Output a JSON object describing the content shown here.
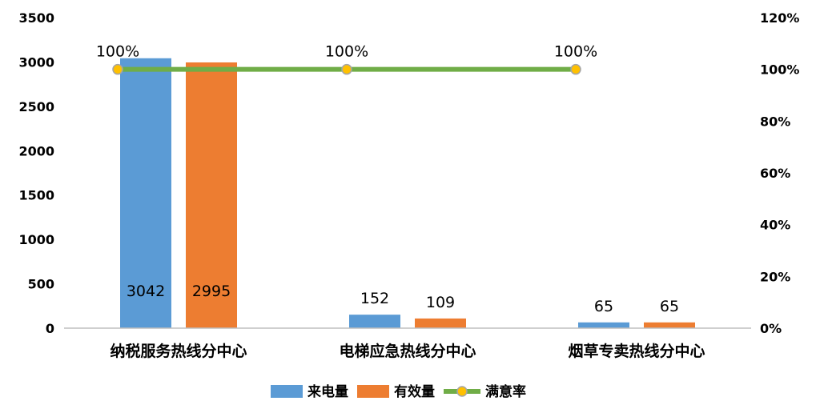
{
  "chart_data": {
    "type": "bar",
    "categories": [
      "纳税服务热线分中心",
      "电梯应急热线分中心",
      "烟草专卖热线分中心"
    ],
    "series": [
      {
        "name": "来电量",
        "type": "bar",
        "axis": "left",
        "values": [
          3042,
          152,
          65
        ],
        "labels": [
          "3042",
          "152",
          "65"
        ],
        "color": "#5b9bd5"
      },
      {
        "name": "有效量",
        "type": "bar",
        "axis": "left",
        "values": [
          2995,
          109,
          65
        ],
        "labels": [
          "2995",
          "109",
          "65"
        ],
        "color": "#ed7d31"
      },
      {
        "name": "满意率",
        "type": "line",
        "axis": "right",
        "values": [
          100,
          100,
          100
        ],
        "labels": [
          "100%",
          "100%",
          "100%"
        ],
        "color": "#70ad47",
        "marker_color": "#ffc000"
      }
    ],
    "y_left": {
      "ticks": [
        "0",
        "500",
        "1000",
        "1500",
        "2000",
        "2500",
        "3000",
        "3500"
      ],
      "range": [
        0,
        3500
      ]
    },
    "y_right": {
      "ticks": [
        "0%",
        "20%",
        "40%",
        "60%",
        "80%",
        "100%",
        "120%"
      ],
      "range": [
        0,
        120
      ]
    },
    "legend_position": "bottom",
    "grid": false
  }
}
